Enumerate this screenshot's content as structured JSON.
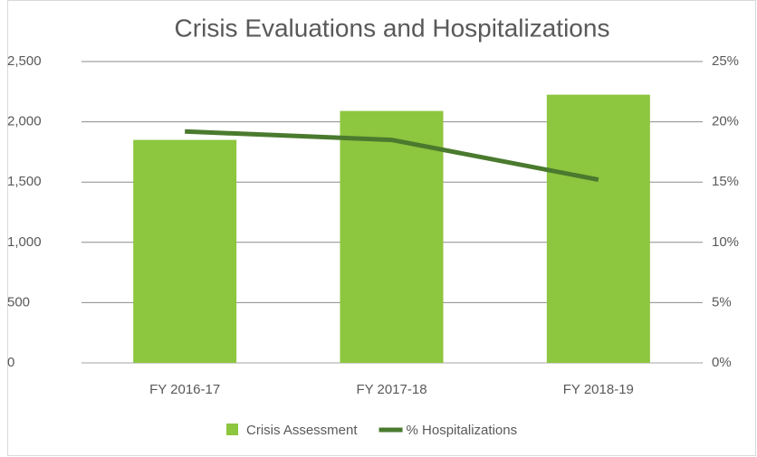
{
  "chart_data": {
    "type": "bar-line",
    "title": "Crisis Evaluations and Hospitalizations",
    "categories": [
      "FY 2016-17",
      "FY 2017-18",
      "FY 2018-19"
    ],
    "series": [
      {
        "name": "Crisis Assessment",
        "color": "#8dc63f",
        "type": "bar",
        "values": [
          1850,
          2090,
          2225
        ]
      },
      {
        "name": "% Hospitalizations",
        "color": "#4a7a2e",
        "type": "line",
        "axis": "y2",
        "values": [
          19.2,
          18.5,
          15.2
        ]
      }
    ],
    "ylim": [
      0,
      2500
    ],
    "yticks": [
      0,
      500,
      {
        "value": 1000,
        "label": "1,000"
      },
      {
        "value": 1500,
        "label": "1,500"
      },
      {
        "value": 2000,
        "label": "2,000"
      },
      {
        "value": 2500,
        "label": "2,500"
      }
    ],
    "y2lim": [
      0,
      25
    ],
    "y2ticks": [
      {
        "value": 0,
        "label": "0%"
      },
      {
        "value": 5,
        "label": "5%"
      },
      {
        "value": 10,
        "label": "10%"
      },
      {
        "value": 15,
        "label": "15%"
      },
      {
        "value": 20,
        "label": "20%"
      },
      {
        "value": 25,
        "label": "25%"
      }
    ],
    "grid": true,
    "legend": "bottom"
  }
}
